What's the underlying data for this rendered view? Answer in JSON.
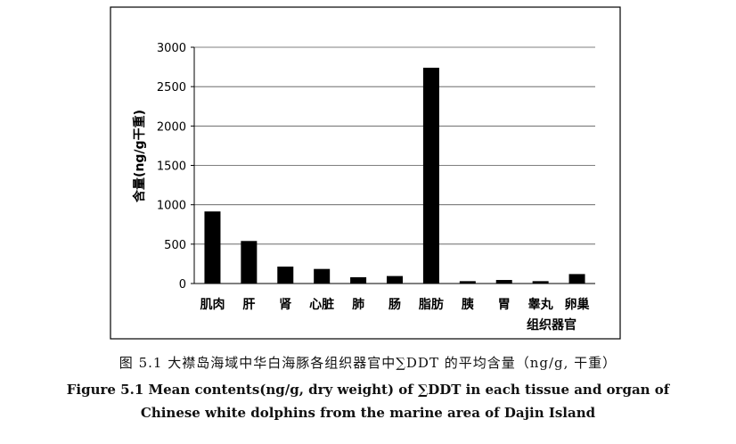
{
  "chart_data": {
    "type": "bar",
    "categories": [
      "肌肉",
      "肝",
      "肾",
      "心脏",
      "肺",
      "肠",
      "脂肪",
      "胰",
      "胃",
      "睾丸",
      "卵巢"
    ],
    "values": [
      915,
      540,
      215,
      185,
      80,
      95,
      2740,
      30,
      45,
      30,
      120
    ],
    "ylabel": "含量(ng/g干重)",
    "xlabel": "组织器官",
    "ylim": [
      0,
      3000
    ],
    "yticks": [
      0,
      500,
      1000,
      1500,
      2000,
      2500,
      3000
    ],
    "grid": true,
    "bar_color": "#000000"
  },
  "caption": {
    "zh": "图 5.1 大襟岛海域中华白海豚各组织器官中∑DDT 的平均含量（ng/g, 干重）",
    "en_line1": "Figure 5.1 Mean contents(ng/g, dry weight) of ∑DDT in each tissue and organ of",
    "en_line2": "Chinese white dolphins from the marine area of Dajin Island"
  }
}
